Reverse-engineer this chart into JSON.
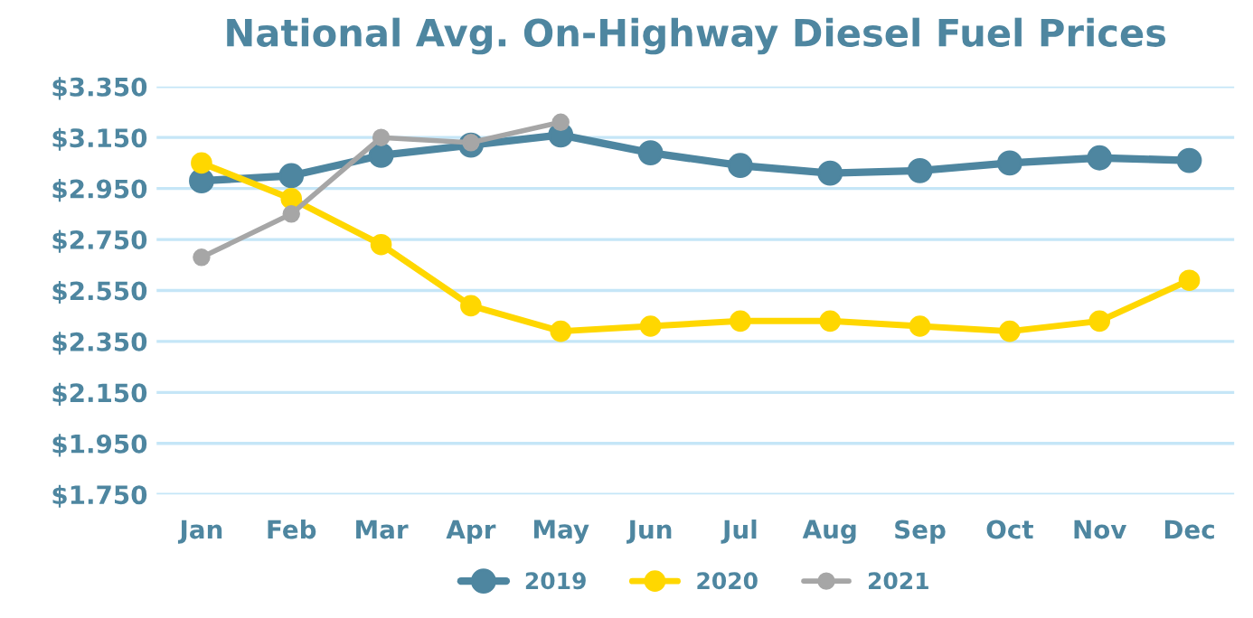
{
  "chart_data": {
    "type": "line",
    "title": "National Avg. On-Highway Diesel Fuel Prices",
    "categories": [
      "Jan",
      "Feb",
      "Mar",
      "Apr",
      "May",
      "Jun",
      "Jul",
      "Aug",
      "Sep",
      "Oct",
      "Nov",
      "Dec"
    ],
    "series": [
      {
        "name": "2019",
        "color": "#4e86a0",
        "values": [
          2.98,
          3.0,
          3.08,
          3.12,
          3.16,
          3.09,
          3.04,
          3.01,
          3.02,
          3.05,
          3.07,
          3.06
        ]
      },
      {
        "name": "2020",
        "color": "#ffd700",
        "values": [
          3.05,
          2.91,
          2.73,
          2.49,
          2.39,
          2.41,
          2.43,
          2.43,
          2.41,
          2.39,
          2.43,
          2.59
        ]
      },
      {
        "name": "2021",
        "color": "#a6a6a6",
        "values": [
          2.68,
          2.85,
          3.15,
          3.13,
          3.21,
          null,
          null,
          null,
          null,
          null,
          null,
          null
        ]
      }
    ],
    "ylim": [
      1.75,
      3.35
    ],
    "yticks": [
      {
        "value": 1.75,
        "label": "$1.750"
      },
      {
        "value": 1.95,
        "label": "$1.950"
      },
      {
        "value": 2.15,
        "label": "$2.150"
      },
      {
        "value": 2.35,
        "label": "$2.350"
      },
      {
        "value": 2.55,
        "label": "$2.550"
      },
      {
        "value": 2.75,
        "label": "$2.750"
      },
      {
        "value": 2.95,
        "label": "$2.950"
      },
      {
        "value": 3.15,
        "label": "$3.150"
      },
      {
        "value": 3.35,
        "label": "$3.350"
      }
    ],
    "grid": "y",
    "legend": "bottom",
    "marker": "circle",
    "line_style": "solid"
  }
}
